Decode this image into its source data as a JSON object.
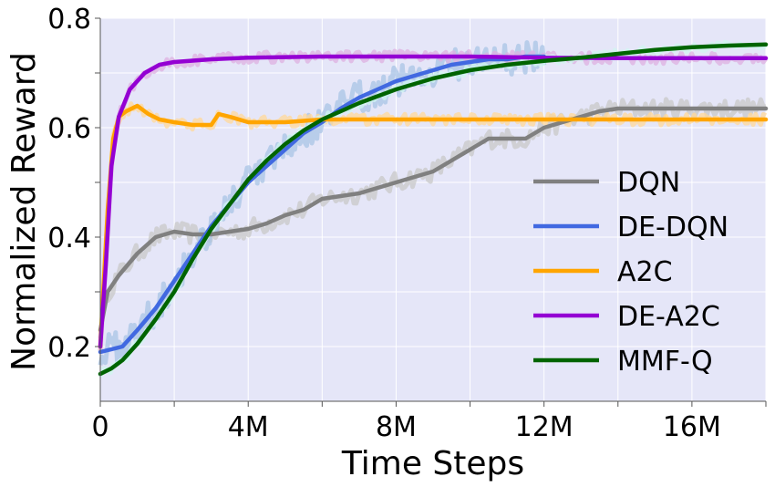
{
  "chart_data": {
    "type": "line",
    "title": "",
    "xlabel": "Time Steps",
    "ylabel": "Normalized Reward",
    "xlim": [
      0,
      18000000
    ],
    "ylim": [
      0.1,
      0.8
    ],
    "xticks": [
      {
        "value": 0,
        "label": "0"
      },
      {
        "value": 4000000,
        "label": "4M"
      },
      {
        "value": 8000000,
        "label": "8M"
      },
      {
        "value": 12000000,
        "label": "12M"
      },
      {
        "value": 16000000,
        "label": "16M"
      }
    ],
    "yticks": [
      {
        "value": 0.2,
        "label": "0.2"
      },
      {
        "value": 0.4,
        "label": "0.4"
      },
      {
        "value": 0.6,
        "label": "0.6"
      },
      {
        "value": 0.8,
        "label": "0.8"
      }
    ],
    "grid": true,
    "legend_position": "lower-right",
    "series": [
      {
        "name": "DQN",
        "color": "#808080",
        "band_color": "#c8c8c8",
        "x": [
          0,
          200000,
          500000,
          1000000,
          1500000,
          2000000,
          2500000,
          3000000,
          3500000,
          4000000,
          4500000,
          5000000,
          5500000,
          6000000,
          6500000,
          7000000,
          7500000,
          8000000,
          8500000,
          9000000,
          9500000,
          10000000,
          10500000,
          11000000,
          11500000,
          12000000,
          12500000,
          13000000,
          13500000,
          14000000,
          15000000,
          16000000,
          17000000,
          18000000
        ],
        "values": [
          0.23,
          0.3,
          0.33,
          0.37,
          0.4,
          0.41,
          0.405,
          0.405,
          0.41,
          0.415,
          0.425,
          0.44,
          0.45,
          0.47,
          0.475,
          0.48,
          0.49,
          0.5,
          0.51,
          0.52,
          0.54,
          0.56,
          0.58,
          0.58,
          0.58,
          0.6,
          0.61,
          0.62,
          0.63,
          0.635,
          0.635,
          0.635,
          0.635,
          0.635
        ]
      },
      {
        "name": "DE-DQN",
        "color": "#4169e1",
        "band_color": "#a8c4e6",
        "x": [
          0,
          300000,
          600000,
          1000000,
          1500000,
          2000000,
          2500000,
          3000000,
          3500000,
          4000000,
          4500000,
          5000000,
          5500000,
          6000000,
          6500000,
          7000000,
          7500000,
          8000000,
          8500000,
          9000000,
          9500000,
          10000000,
          10500000,
          11000000,
          11500000,
          12000000
        ],
        "values": [
          0.19,
          0.195,
          0.2,
          0.23,
          0.27,
          0.32,
          0.37,
          0.42,
          0.46,
          0.5,
          0.53,
          0.56,
          0.59,
          0.61,
          0.635,
          0.655,
          0.67,
          0.685,
          0.695,
          0.705,
          0.715,
          0.72,
          0.725,
          0.725,
          0.73,
          0.73
        ]
      },
      {
        "name": "A2C",
        "color": "#ffa500",
        "band_color": "#ffd89a",
        "x": [
          0,
          200000,
          350000,
          500000,
          700000,
          1000000,
          1300000,
          1600000,
          2000000,
          2500000,
          3000000,
          3200000,
          3500000,
          4000000,
          4500000,
          5000000,
          6000000,
          8000000,
          10000000,
          12000000,
          14000000,
          16000000,
          18000000
        ],
        "values": [
          0.2,
          0.45,
          0.58,
          0.62,
          0.63,
          0.64,
          0.625,
          0.615,
          0.61,
          0.605,
          0.605,
          0.625,
          0.62,
          0.61,
          0.61,
          0.61,
          0.615,
          0.615,
          0.615,
          0.615,
          0.615,
          0.615,
          0.615
        ]
      },
      {
        "name": "DE-A2C",
        "color": "#9400d3",
        "band_color": "#deb0e2",
        "x": [
          0,
          150000,
          300000,
          500000,
          800000,
          1200000,
          1600000,
          2000000,
          3000000,
          4000000,
          6000000,
          8000000,
          10000000,
          12000000,
          14000000,
          16000000,
          18000000
        ],
        "values": [
          0.2,
          0.35,
          0.53,
          0.62,
          0.67,
          0.7,
          0.715,
          0.72,
          0.725,
          0.728,
          0.73,
          0.73,
          0.73,
          0.728,
          0.727,
          0.727,
          0.727
        ]
      },
      {
        "name": "MMF-Q",
        "color": "#006400",
        "band_color": "#d0f5f0",
        "x": [
          0,
          300000,
          600000,
          1000000,
          1500000,
          2000000,
          2500000,
          3000000,
          3500000,
          4000000,
          4500000,
          5000000,
          5500000,
          6000000,
          7000000,
          8000000,
          9000000,
          10000000,
          11000000,
          12000000,
          13000000,
          14000000,
          15000000,
          16000000,
          17000000,
          18000000
        ],
        "values": [
          0.15,
          0.16,
          0.175,
          0.205,
          0.25,
          0.3,
          0.36,
          0.415,
          0.46,
          0.505,
          0.54,
          0.57,
          0.595,
          0.615,
          0.645,
          0.67,
          0.69,
          0.705,
          0.715,
          0.722,
          0.728,
          0.735,
          0.742,
          0.747,
          0.75,
          0.752
        ]
      }
    ]
  }
}
